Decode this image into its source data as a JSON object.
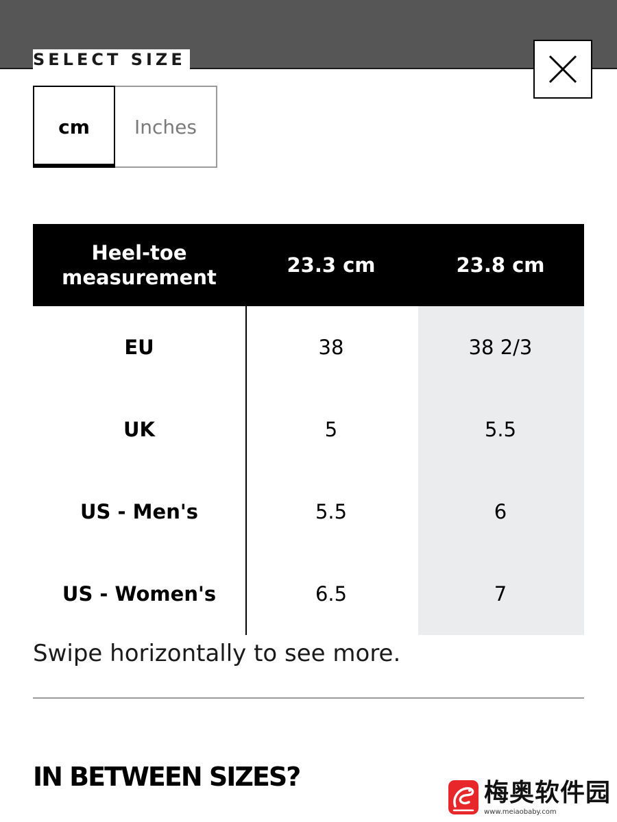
{
  "modal": {
    "title": "SELECT SIZE"
  },
  "unit_toggle": {
    "options": [
      {
        "label": "cm",
        "active": true
      },
      {
        "label": "Inches",
        "active": false
      }
    ]
  },
  "size_table": {
    "headers": [
      "Heel-toe measurement",
      "23.3 cm",
      "23.8 cm"
    ],
    "rows": [
      {
        "label": "EU",
        "values": [
          "38",
          "38 2/3"
        ]
      },
      {
        "label": "UK",
        "values": [
          "5",
          "5.5"
        ]
      },
      {
        "label": "US - Men's",
        "values": [
          "5.5",
          "6"
        ]
      },
      {
        "label": "US - Women's",
        "values": [
          "6.5",
          "7"
        ]
      }
    ]
  },
  "hint": "Swipe horizontally to see more.",
  "section": {
    "heading": "IN BETWEEN SIZES?"
  },
  "watermark": {
    "name": "梅奥软件园",
    "url": "www.meiaobaby.com"
  },
  "colors": {
    "overlay": "#565656",
    "highlight_column": "#ebecee",
    "header_bg": "#000000",
    "watermark_red": "#e8272a"
  }
}
